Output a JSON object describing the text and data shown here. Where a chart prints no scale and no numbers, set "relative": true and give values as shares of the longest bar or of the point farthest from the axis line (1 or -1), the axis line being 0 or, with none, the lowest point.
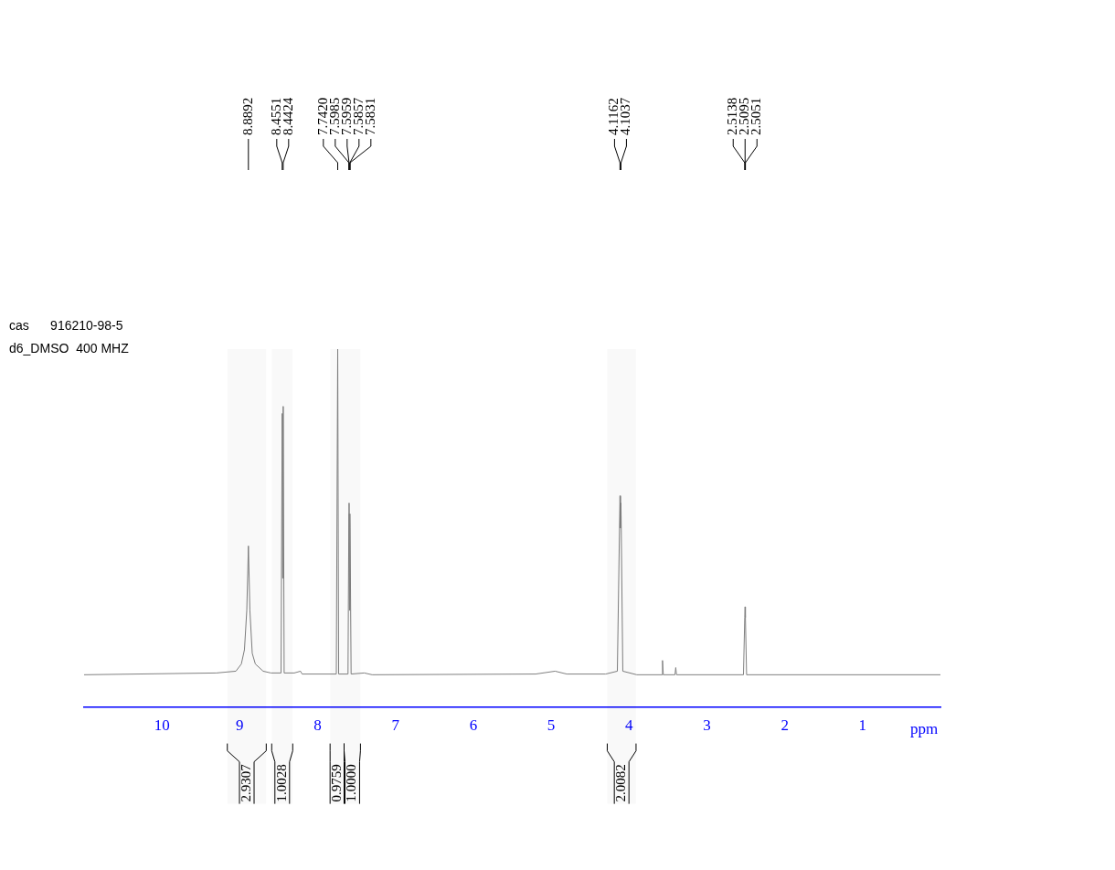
{
  "chart_data": {
    "type": "line",
    "relative": true,
    "xlabel": "ppm",
    "xlim": [
      11,
      0
    ],
    "xticks": [
      10,
      9,
      8,
      7,
      6,
      5,
      4,
      3,
      2,
      1
    ],
    "grid": false,
    "legend": false,
    "marker": "none",
    "tick_labels": "x",
    "series": [
      {
        "color": "#808080",
        "x": [
          11,
          9.3,
          9.05,
          8.98,
          8.94,
          8.91,
          8.8892,
          8.87,
          8.84,
          8.8,
          8.7,
          8.6,
          8.47,
          8.4551,
          8.449,
          8.4424,
          8.43,
          8.3,
          8.22,
          8.2,
          7.76,
          7.742,
          7.73,
          7.61,
          7.5985,
          7.5959,
          7.59,
          7.5857,
          7.5831,
          7.57,
          7.4,
          7.3,
          5.2,
          4.95,
          4.8,
          4.3,
          4.15,
          4.1162,
          4.11,
          4.1037,
          4.08,
          3.9,
          3.58,
          3.57,
          3.56,
          3.41,
          3.4,
          3.39,
          2.53,
          2.5138,
          2.5095,
          2.5051,
          2.49,
          0
        ],
        "values": [
          0.09,
          0.095,
          0.1,
          0.12,
          0.16,
          0.27,
          0.45,
          0.27,
          0.15,
          0.12,
          0.1,
          0.095,
          0.095,
          0.82,
          0.36,
          0.84,
          0.095,
          0.095,
          0.1,
          0.092,
          0.092,
          1.0,
          0.092,
          0.092,
          0.54,
          0.57,
          0.27,
          0.54,
          0.5,
          0.092,
          0.095,
          0.09,
          0.092,
          0.1,
          0.092,
          0.092,
          0.1,
          0.59,
          0.5,
          0.57,
          0.1,
          0.09,
          0.09,
          0.13,
          0.09,
          0.09,
          0.11,
          0.09,
          0.09,
          0.25,
          0.28,
          0.25,
          0.09,
          0.09
        ]
      }
    ],
    "bands": [
      {
        "axis": "x",
        "from": 9.16,
        "to": 8.66,
        "label": "2.9307"
      },
      {
        "axis": "x",
        "from": 8.59,
        "to": 8.32,
        "label": "1.0028"
      },
      {
        "axis": "x",
        "from": 7.84,
        "to": 7.66,
        "label": "0.9759"
      },
      {
        "axis": "x",
        "from": 7.66,
        "to": 7.45,
        "label": "1.0000"
      },
      {
        "axis": "x",
        "from": 4.28,
        "to": 3.91,
        "label": "2.0082"
      }
    ],
    "annotations": [
      "cas      916210-98-5",
      "d6_DMSO  400 MHZ",
      {
        "text": "8.8892",
        "x": 8.8892
      },
      {
        "text": "8.4551",
        "x": 8.4551
      },
      {
        "text": "8.4424",
        "x": 8.4424
      },
      {
        "text": "7.7420",
        "x": 7.742
      },
      {
        "text": "7.5985",
        "x": 7.5985
      },
      {
        "text": "7.5959",
        "x": 7.5959
      },
      {
        "text": "7.5857",
        "x": 7.5857
      },
      {
        "text": "7.5831",
        "x": 7.5831
      },
      {
        "text": "4.1162",
        "x": 4.1162
      },
      {
        "text": "4.1037",
        "x": 4.1037
      },
      {
        "text": "2.5138",
        "x": 2.5138
      },
      {
        "text": "2.5095",
        "x": 2.5095
      },
      {
        "text": "2.5051",
        "x": 2.5051
      }
    ]
  }
}
